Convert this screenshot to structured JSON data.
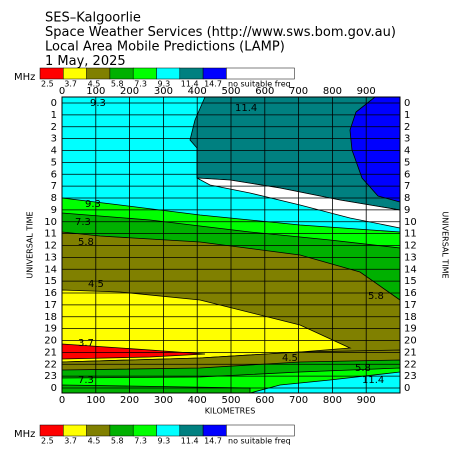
{
  "chart_data": {
    "type": "contour",
    "title_lines": [
      "SES–Kalgoorlie",
      "Space Weather Services (http://www.sws.bom.gov.au)",
      "Local Area Mobile Predictions (LAMP)",
      "1 May, 2025"
    ],
    "legend_unit": "MHz",
    "levels": [
      2.5,
      3.7,
      4.5,
      5.8,
      7.3,
      9.3,
      11.4,
      14.7
    ],
    "colors": [
      "#ff0000",
      "#ffff00",
      "#808000",
      "#00b000",
      "#00ff00",
      "#00ffff",
      "#008080",
      "#0000ff",
      "#ffffff"
    ],
    "no_data_label": "no suitable freq",
    "xlabel": "KILOMETRES",
    "ylabel": "UNIVERSAL TIME",
    "xlim": [
      0,
      1000
    ],
    "xticks": [
      0,
      100,
      200,
      300,
      400,
      500,
      600,
      700,
      800,
      900
    ],
    "ylim": [
      0,
      24
    ],
    "yticks": [
      0,
      1,
      2,
      3,
      4,
      5,
      6,
      7,
      8,
      9,
      10,
      11,
      12,
      13,
      14,
      15,
      16,
      17,
      18,
      19,
      20,
      21,
      22,
      23,
      {
        "value": 24,
        "label": "0"
      }
    ],
    "contour_labels": [
      9.3,
      11.4,
      9.3,
      7.3,
      5.8,
      4.5,
      5.8,
      3.7,
      4.5,
      5.8,
      7.3,
      11.4
    ]
  }
}
